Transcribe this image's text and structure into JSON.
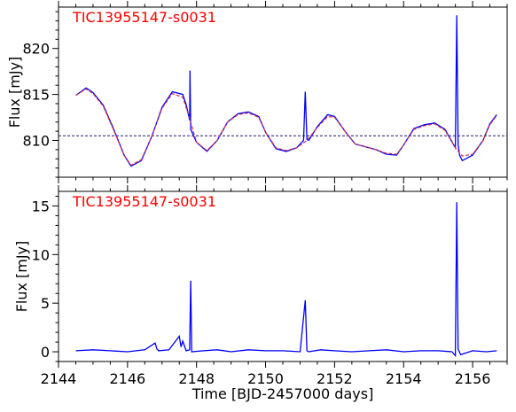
{
  "colors": {
    "flux": "#0000ff",
    "model": "#d0304a",
    "mean_line": "#1a1a6e",
    "title": "#ff0000"
  },
  "chart_data": [
    {
      "type": "line",
      "title": "TIC13955147-s0031",
      "xlabel": "",
      "ylabel": "Flux [mJy]",
      "xlim": [
        2144.0,
        2157.0
      ],
      "ylim": [
        806.0,
        824.5
      ],
      "xticks": [
        2144,
        2146,
        2148,
        2150,
        2152,
        2154,
        2156
      ],
      "yticks": [
        810,
        815,
        820
      ],
      "ytick_labels": [
        "810",
        "815",
        "820"
      ],
      "xtick_labels_visible": false,
      "mean_level": 810.5,
      "series": [
        {
          "role": "flux",
          "style": "solid",
          "x": [
            2144.5,
            2144.8,
            2145.0,
            2145.3,
            2145.6,
            2145.9,
            2146.1,
            2146.4,
            2146.7,
            2147.0,
            2147.3,
            2147.6,
            2147.7,
            2147.8,
            2147.81,
            2147.83,
            2148.0,
            2148.3,
            2148.6,
            2148.9,
            2149.2,
            2149.5,
            2149.8,
            2150.0,
            2150.3,
            2150.6,
            2150.9,
            2151.1,
            2151.15,
            2151.2,
            2151.25,
            2151.5,
            2151.8,
            2152.0,
            2152.3,
            2152.6,
            2152.9,
            2153.2,
            2153.5,
            2153.8,
            2154.0,
            2154.3,
            2154.6,
            2154.9,
            2155.2,
            2155.5,
            2155.54,
            2155.58,
            2155.62,
            2155.7,
            2156.0,
            2156.3,
            2156.5,
            2156.7
          ],
          "y": [
            814.9,
            815.7,
            815.2,
            813.8,
            811.2,
            808.4,
            807.2,
            807.8,
            810.4,
            813.6,
            815.3,
            815.0,
            813.9,
            812.2,
            817.6,
            811.2,
            809.8,
            808.8,
            810.0,
            812.0,
            812.9,
            813.1,
            812.6,
            810.9,
            809.1,
            808.8,
            809.2,
            810.0,
            815.3,
            810.1,
            810.0,
            811.5,
            812.8,
            812.6,
            811.0,
            809.6,
            809.3,
            809.0,
            808.5,
            808.4,
            809.5,
            811.3,
            811.7,
            811.9,
            811.2,
            809.2,
            823.6,
            809.6,
            808.4,
            807.8,
            808.4,
            810.0,
            811.8,
            812.8
          ]
        },
        {
          "role": "model",
          "style": "dashed",
          "x": [
            2144.5,
            2144.8,
            2145.0,
            2145.3,
            2145.6,
            2145.9,
            2146.1,
            2146.4,
            2146.7,
            2147.0,
            2147.3,
            2147.6,
            2147.8,
            2148.0,
            2148.3,
            2148.6,
            2148.9,
            2149.2,
            2149.5,
            2149.8,
            2150.0,
            2150.3,
            2150.6,
            2150.9,
            2151.2,
            2151.5,
            2151.8,
            2152.0,
            2152.3,
            2152.6,
            2152.9,
            2153.2,
            2153.5,
            2153.8,
            2154.0,
            2154.3,
            2154.6,
            2154.9,
            2155.2,
            2155.5,
            2155.7,
            2156.0,
            2156.3,
            2156.5,
            2156.7
          ],
          "y": [
            814.9,
            815.6,
            815.1,
            813.7,
            811.1,
            808.4,
            807.3,
            807.9,
            810.4,
            813.5,
            815.1,
            814.7,
            812.4,
            809.8,
            808.9,
            810.0,
            812.0,
            812.8,
            813.0,
            812.5,
            810.9,
            809.2,
            808.9,
            809.2,
            810.0,
            811.4,
            812.6,
            812.5,
            811.0,
            809.6,
            809.3,
            809.0,
            808.6,
            808.5,
            809.5,
            811.2,
            811.6,
            811.8,
            811.1,
            809.2,
            808.3,
            808.5,
            810.0,
            811.7,
            812.7
          ]
        }
      ]
    },
    {
      "type": "line",
      "title": "TIC13955147-s0031",
      "xlabel": "Time [BJD-2457000 days]",
      "ylabel": "Flux [mJy]",
      "xlim": [
        2144.0,
        2157.0
      ],
      "ylim": [
        -1.0,
        16.5
      ],
      "xticks": [
        2144,
        2146,
        2148,
        2150,
        2152,
        2154,
        2156
      ],
      "xtick_labels": [
        "2144",
        "2146",
        "2148",
        "2150",
        "2152",
        "2154",
        "2156"
      ],
      "yticks": [
        0,
        5,
        10,
        15
      ],
      "ytick_labels": [
        "0",
        "5",
        "10",
        "15"
      ],
      "series": [
        {
          "role": "flux",
          "style": "solid",
          "x": [
            2144.5,
            2145.0,
            2145.5,
            2146.0,
            2146.5,
            2146.8,
            2146.85,
            2146.9,
            2147.2,
            2147.5,
            2147.55,
            2147.6,
            2147.7,
            2147.8,
            2147.83,
            2147.86,
            2148.2,
            2148.6,
            2149.0,
            2149.5,
            2150.0,
            2150.5,
            2151.0,
            2151.15,
            2151.2,
            2151.25,
            2151.6,
            2152.0,
            2152.5,
            2153.0,
            2153.5,
            2154.0,
            2154.5,
            2155.0,
            2155.4,
            2155.5,
            2155.54,
            2155.58,
            2155.65,
            2156.0,
            2156.4,
            2156.7
          ],
          "y": [
            0.1,
            0.2,
            0.1,
            0.0,
            0.2,
            0.9,
            0.3,
            0.1,
            0.2,
            1.6,
            0.5,
            1.1,
            0.1,
            0.2,
            7.3,
            0.0,
            0.1,
            0.2,
            0.0,
            0.2,
            0.1,
            0.1,
            0.0,
            5.3,
            0.1,
            0.0,
            0.2,
            0.1,
            0.0,
            0.1,
            0.2,
            0.0,
            0.1,
            0.1,
            0.0,
            -0.4,
            15.4,
            0.3,
            -0.3,
            0.1,
            0.0,
            0.1
          ]
        }
      ]
    }
  ]
}
